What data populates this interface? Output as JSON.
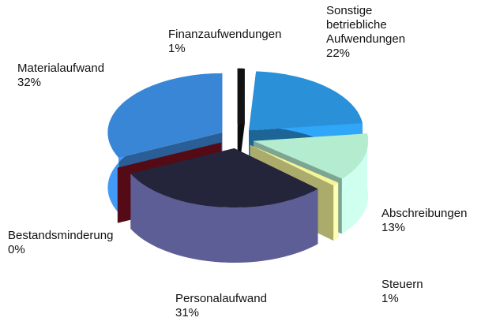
{
  "chart_data": {
    "type": "pie3d",
    "categories": [
      "Finanzaufwendungen",
      "Sonstige betriebliche Aufwendungen",
      "Abschreibungen",
      "Steuern",
      "Personalaufwand",
      "Bestandsminderung",
      "Materialaufwand"
    ],
    "values": [
      1,
      22,
      13,
      1,
      31,
      0,
      32
    ],
    "value_labels": [
      "1%",
      "22%",
      "13%",
      "1%",
      "31%",
      "0%",
      "32%"
    ],
    "colors": [
      "#111111",
      "#2a90d8",
      "#b4ecd0",
      "#f4f49a",
      "#24243a",
      "#7a1020",
      "#3a86d6"
    ]
  }
}
